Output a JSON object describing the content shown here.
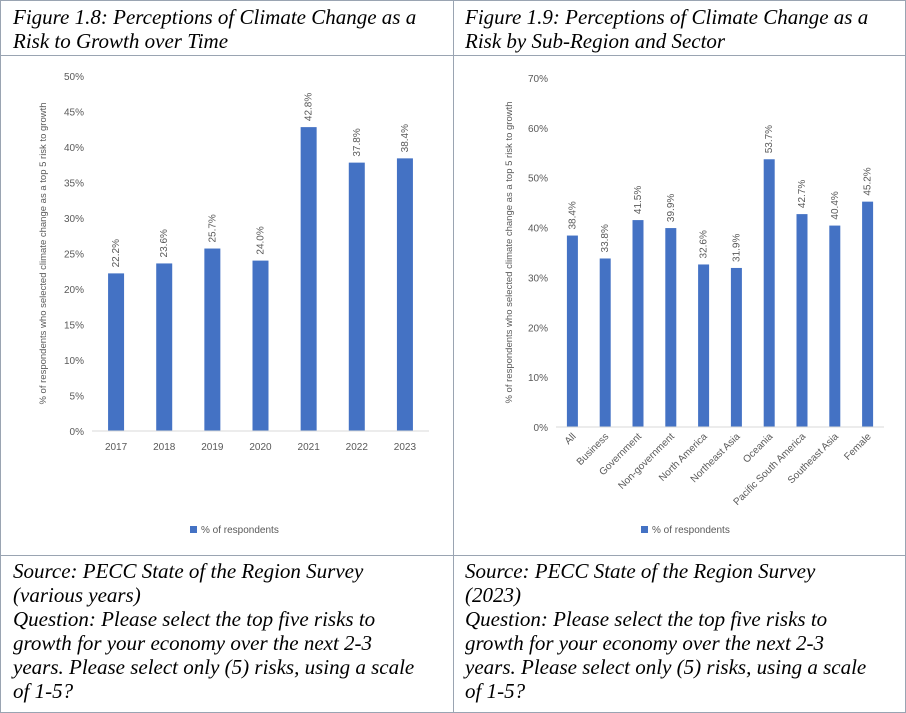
{
  "left": {
    "title_line1": "Figure 1.8: Perceptions of Climate Change as a",
    "title_line2": "Risk to Growth over Time",
    "source_line1": "Source: PECC State of the Region Survey",
    "source_line2": "(various years)",
    "question_line1": "Question: Please select the top five risks to",
    "question_line2": "growth for your economy over the next 2-3",
    "question_line3": "years. Please select only (5) risks, using a scale",
    "question_line4": "of 1-5?"
  },
  "right": {
    "title_line1": "Figure 1.9: Perceptions of Climate Change as a",
    "title_line2": "Risk by Sub-Region and Sector",
    "source_line1": "Source: PECC State of the Region Survey",
    "source_line2": "(2023)",
    "question_line1": "Question: Please select the top five risks to",
    "question_line2": "growth for your economy over the next 2-3",
    "question_line3": "years. Please select only (5) risks, using a scale",
    "question_line4": "of 1-5?"
  },
  "colors": {
    "bar": "#4472C4",
    "axis": "#d9d9d9",
    "text": "#595959",
    "border": "#9aa4b2"
  },
  "chart_data": [
    {
      "type": "bar",
      "categories": [
        "2017",
        "2018",
        "2019",
        "2020",
        "2021",
        "2022",
        "2023"
      ],
      "series": [
        {
          "name": "% of respondents",
          "values": [
            22.2,
            23.6,
            25.7,
            24.0,
            42.8,
            37.8,
            38.4
          ]
        }
      ],
      "data_labels": [
        "22.2%",
        "23.6%",
        "25.7%",
        "24.0%",
        "42.8%",
        "37.8%",
        "38.4%"
      ],
      "ylabel": "% of respondents who selected climate change as a top 5 risk to growth",
      "ylim": [
        0,
        50
      ],
      "yticks": [
        0,
        5,
        10,
        15,
        20,
        25,
        30,
        35,
        40,
        45,
        50
      ],
      "ytick_labels": [
        "0%",
        "5%",
        "10%",
        "15%",
        "20%",
        "25%",
        "30%",
        "35%",
        "40%",
        "45%",
        "50%"
      ],
      "legend": "bottom",
      "legend_label": "% of respondents",
      "grid": false
    },
    {
      "type": "bar",
      "categories": [
        "All",
        "Business",
        "Government",
        "Non-government",
        "North America",
        "Northeast Asia",
        "Oceania",
        "Pacific South America",
        "Southeast Asia",
        "Female"
      ],
      "series": [
        {
          "name": "% of respondents",
          "values": [
            38.4,
            33.8,
            41.5,
            39.9,
            32.6,
            31.9,
            53.7,
            42.7,
            40.4,
            45.2
          ]
        }
      ],
      "data_labels": [
        "38.4%",
        "33.8%",
        "41.5%",
        "39.9%",
        "32.6%",
        "31.9%",
        "53.7%",
        "42.7%",
        "40.4%",
        "45.2%"
      ],
      "ylabel": "% of respondents who selected climate change as a top 5 risk to growth",
      "ylim": [
        0,
        70
      ],
      "yticks": [
        0,
        10,
        20,
        30,
        40,
        50,
        60,
        70
      ],
      "ytick_labels": [
        "0%",
        "10%",
        "20%",
        "30%",
        "40%",
        "50%",
        "60%",
        "70%"
      ],
      "legend": "bottom",
      "legend_label": "% of respondents",
      "grid": false
    }
  ]
}
